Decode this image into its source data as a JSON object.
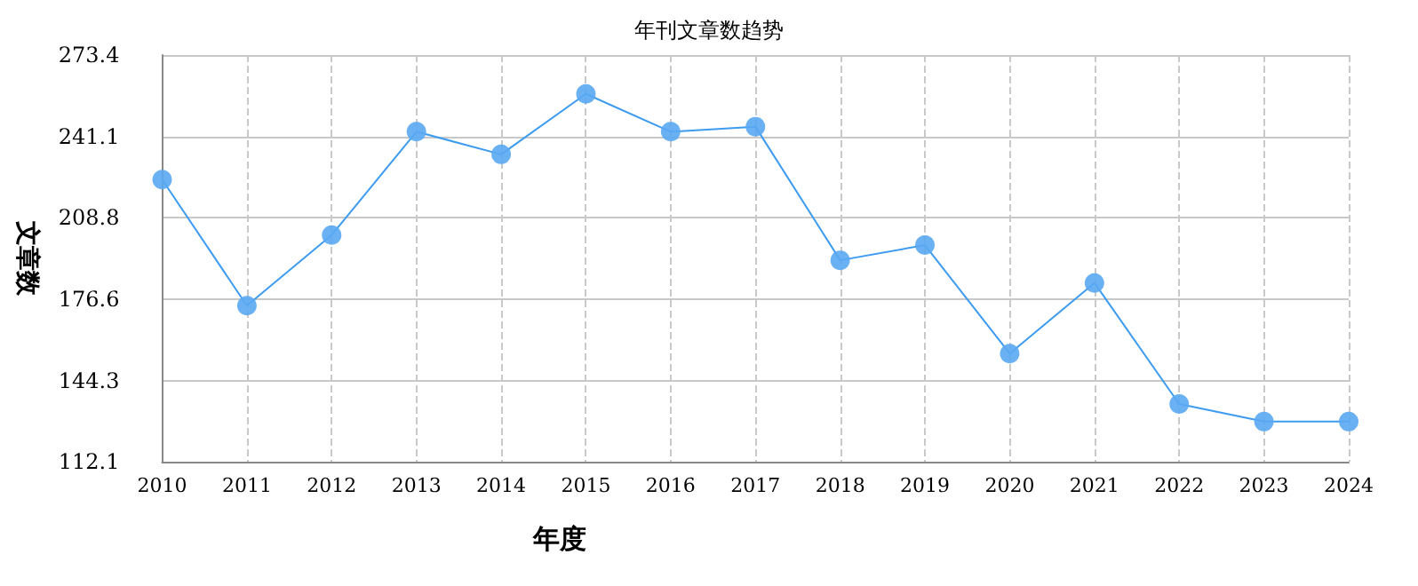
{
  "chart_data": {
    "type": "line",
    "title": "年刊文章数趋势",
    "xlabel": "年度",
    "ylabel": "文章数",
    "categories": [
      "2010",
      "2011",
      "2012",
      "2013",
      "2014",
      "2015",
      "2016",
      "2017",
      "2018",
      "2019",
      "2020",
      "2021",
      "2022",
      "2023",
      "2024"
    ],
    "series": [
      {
        "color": "#3d9bf0",
        "values": [
          224,
          174,
          202,
          243,
          234,
          258,
          243,
          245,
          192,
          198,
          155,
          183,
          135,
          128,
          128
        ]
      }
    ],
    "ylim": [
      112.1,
      273.4
    ],
    "yticks": [
      112.1,
      144.3,
      176.6,
      208.8,
      241.1,
      273.4
    ],
    "grid": true,
    "marker": "circle",
    "line_style": "solid"
  }
}
